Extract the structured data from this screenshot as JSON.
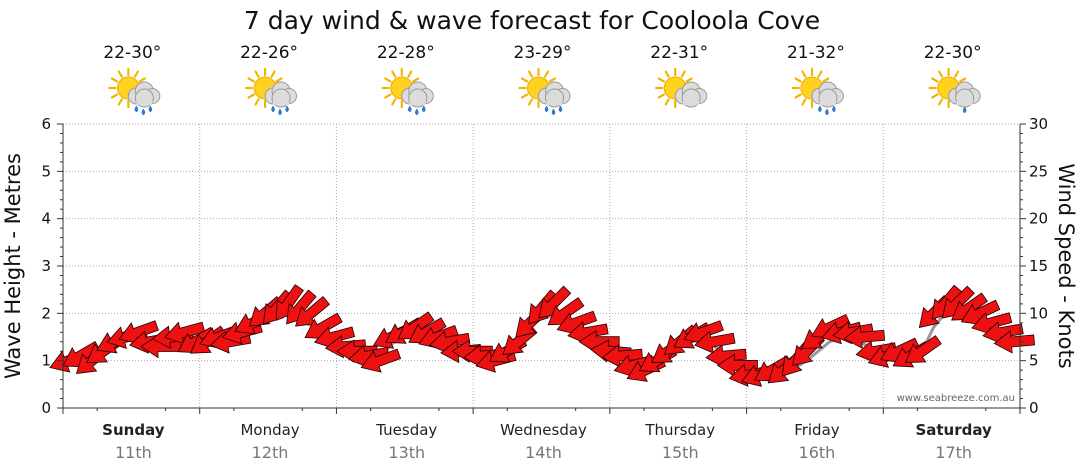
{
  "chart_data": {
    "type": "line",
    "title": "7 day wind & wave forecast for Cooloola Cove",
    "ylabel_left": "Wave Height - Metres",
    "ylabel_right": "Wind Speed - Knots",
    "ylim_left": [
      0,
      6
    ],
    "ylim_right": [
      0,
      30
    ],
    "yticks_left": [
      "0",
      "1",
      "2",
      "3",
      "4",
      "5",
      "6"
    ],
    "yticks_right": [
      "0",
      "5",
      "10",
      "15",
      "20",
      "25",
      "30"
    ],
    "days": [
      {
        "name": "Sunday",
        "date": "11th",
        "bold": true,
        "temp": "22-30°",
        "weather_icon": "sun-cloud-rain-icon"
      },
      {
        "name": "Monday",
        "date": "12th",
        "bold": false,
        "temp": "22-26°",
        "weather_icon": "sun-cloud-rain-icon"
      },
      {
        "name": "Tuesday",
        "date": "13th",
        "bold": false,
        "temp": "22-28°",
        "weather_icon": "sun-cloud-rain-icon"
      },
      {
        "name": "Wednesday",
        "date": "14th",
        "bold": false,
        "temp": "23-29°",
        "weather_icon": "sun-cloud-rain-icon"
      },
      {
        "name": "Thursday",
        "date": "15th",
        "bold": false,
        "temp": "22-31°",
        "weather_icon": "sun-cloud-icon"
      },
      {
        "name": "Friday",
        "date": "16th",
        "bold": false,
        "temp": "21-32°",
        "weather_icon": "sun-cloud-rain-icon"
      },
      {
        "name": "Saturday",
        "date": "17th",
        "bold": true,
        "temp": "22-30°",
        "weather_icon": "sun-cloud-shower-icon"
      }
    ],
    "series": [
      {
        "name": "Wind Speed (knots)",
        "color": "#ee1111",
        "values": [
          5.0,
          5.5,
          5.0,
          6.0,
          7.0,
          7.5,
          8.0,
          7.0,
          6.5,
          7.5,
          8.0,
          7.0,
          7.0,
          7.5,
          7.0,
          8.0,
          9.0,
          10.0,
          10.5,
          11.0,
          10.5,
          10.0,
          8.5,
          7.5,
          6.5,
          6.0,
          5.5,
          5.0,
          7.5,
          8.0,
          8.5,
          8.0,
          7.5,
          7.0,
          6.0,
          6.0,
          5.5,
          5.0,
          6.0,
          7.0,
          9.0,
          10.5,
          11.0,
          10.0,
          9.0,
          8.0,
          7.0,
          6.0,
          5.5,
          4.5,
          4.0,
          5.0,
          6.0,
          7.0,
          7.5,
          8.0,
          7.0,
          5.5,
          4.5,
          3.5,
          3.5,
          4.0,
          4.0,
          5.0,
          6.0,
          7.5,
          8.5,
          8.0,
          8.0,
          7.5,
          6.0,
          5.5,
          6.0,
          5.5,
          6.0,
          10.0,
          11.0,
          11.0,
          10.5,
          10.0,
          9.0,
          8.0,
          7.0
        ]
      },
      {
        "name": "Wave Height (m)",
        "color": "#888888",
        "values": [
          0.95,
          1.0,
          1.1,
          1.2,
          1.35,
          1.45,
          1.5,
          1.45,
          1.4,
          1.45,
          1.5,
          1.5,
          1.5,
          1.55,
          1.6,
          1.7,
          1.85,
          1.95,
          2.0,
          1.95,
          1.85,
          1.75,
          1.6,
          1.45,
          1.3,
          1.2,
          1.1,
          1.05,
          1.35,
          1.5,
          1.55,
          1.55,
          1.5,
          1.45,
          1.35,
          1.2,
          1.1,
          1.05,
          1.15,
          1.4,
          1.7,
          1.9,
          1.95,
          1.85,
          1.6,
          1.35,
          1.15,
          1.0,
          0.9,
          0.8,
          0.75,
          0.9,
          1.1,
          1.3,
          1.4,
          1.45,
          1.3,
          1.1,
          0.9,
          0.75,
          0.7,
          0.7,
          0.75,
          0.85,
          1.0,
          1.2,
          1.4,
          1.5,
          1.45,
          1.35,
          1.2,
          1.1,
          1.0,
          1.05,
          1.2,
          1.7,
          2.0,
          2.1,
          2.05,
          1.95,
          1.8,
          1.6,
          1.4
        ]
      }
    ],
    "wind_directions_deg": [
      250,
      240,
      230,
      235,
      245,
      255,
      250,
      260,
      270,
      265,
      255,
      240,
      235,
      250,
      260,
      255,
      245,
      230,
      220,
      215,
      220,
      230,
      240,
      255,
      265,
      270,
      260,
      250,
      245,
      240,
      235,
      240,
      250,
      260,
      265,
      270,
      265,
      255,
      240,
      230,
      225,
      220,
      225,
      235,
      250,
      260,
      270,
      275,
      265,
      255,
      245,
      240,
      235,
      230,
      240,
      250,
      260,
      265,
      270,
      260,
      250,
      240,
      230,
      220,
      225,
      235,
      245,
      255,
      260,
      265,
      260,
      250,
      245,
      240,
      235,
      225,
      220,
      225,
      235,
      245,
      255,
      260,
      265
    ],
    "watermark": "www.seabreeze.com.au"
  }
}
